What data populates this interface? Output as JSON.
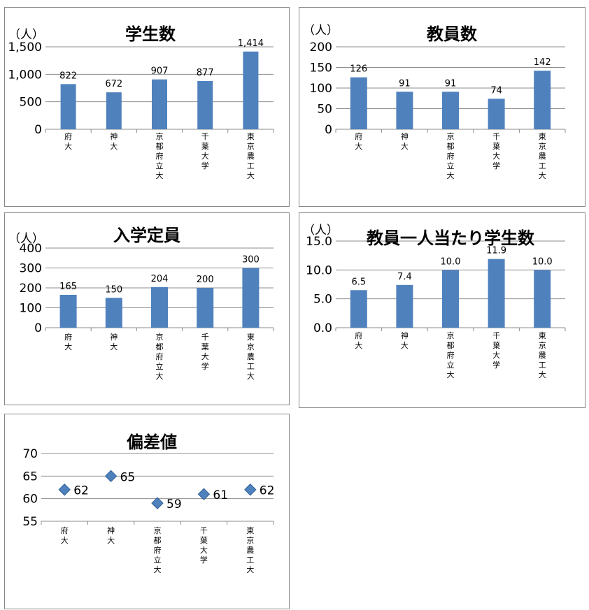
{
  "chart_data": [
    {
      "type": "bar",
      "title": "学生数",
      "unit": "（人）",
      "categories": [
        "府大",
        "神大",
        "京都府立大",
        "千葉大学",
        "東京農工大"
      ],
      "values": [
        822,
        672,
        907,
        877,
        1414
      ],
      "value_labels": [
        "822",
        "672",
        "907",
        "877",
        "1,414"
      ],
      "ylim": [
        0,
        1500
      ],
      "yticks": [
        0,
        500,
        1000,
        1500
      ],
      "ytick_labels": [
        "0",
        "500",
        "1,000",
        "1,500"
      ],
      "grid": true,
      "color": "#4f81bd"
    },
    {
      "type": "bar",
      "title": "教員数",
      "unit": "（人）",
      "categories": [
        "府大",
        "神大",
        "京都府立大",
        "千葉大学",
        "東京農工大"
      ],
      "values": [
        126,
        91,
        91,
        74,
        142
      ],
      "value_labels": [
        "126",
        "91",
        "91",
        "74",
        "142"
      ],
      "ylim": [
        0,
        200
      ],
      "yticks": [
        0,
        50,
        100,
        150,
        200
      ],
      "ytick_labels": [
        "0",
        "50",
        "100",
        "150",
        "200"
      ],
      "grid": true,
      "color": "#4f81bd"
    },
    {
      "type": "bar",
      "title": "入学定員",
      "unit": "（人）",
      "categories": [
        "府大",
        "神大",
        "京都府立大",
        "千葉大学",
        "東京農工大"
      ],
      "values": [
        165,
        150,
        204,
        200,
        300
      ],
      "value_labels": [
        "165",
        "150",
        "204",
        "200",
        "300"
      ],
      "ylim": [
        0,
        400
      ],
      "yticks": [
        0,
        100,
        200,
        300,
        400
      ],
      "ytick_labels": [
        "0",
        "100",
        "200",
        "300",
        "400"
      ],
      "grid": true,
      "color": "#4f81bd"
    },
    {
      "type": "bar",
      "title": "教員一人当たり学生数",
      "unit": "（人）",
      "categories": [
        "府大",
        "神大",
        "京都府立大",
        "千葉大学",
        "東京農工大"
      ],
      "values": [
        6.5,
        7.4,
        10.0,
        11.9,
        10.0
      ],
      "value_labels": [
        "6.5",
        "7.4",
        "10.0",
        "11.9",
        "10.0"
      ],
      "ylim": [
        0,
        15
      ],
      "yticks": [
        0,
        5,
        10,
        15
      ],
      "ytick_labels": [
        "0.0",
        "5.0",
        "10.0",
        "15.0"
      ],
      "grid": true,
      "color": "#4f81bd"
    },
    {
      "type": "scatter",
      "title": "偏差値",
      "categories": [
        "府大",
        "神大",
        "京都府立大",
        "千葉大学",
        "東京農工大"
      ],
      "values": [
        62,
        65,
        59,
        61,
        62
      ],
      "value_labels": [
        "62",
        "65",
        "59",
        "61",
        "62"
      ],
      "ylim": [
        55,
        70
      ],
      "yticks": [
        55,
        60,
        65,
        70
      ],
      "ytick_labels": [
        "55",
        "60",
        "65",
        "70"
      ],
      "grid": true,
      "marker": "diamond",
      "color": "#4f81bd"
    }
  ]
}
